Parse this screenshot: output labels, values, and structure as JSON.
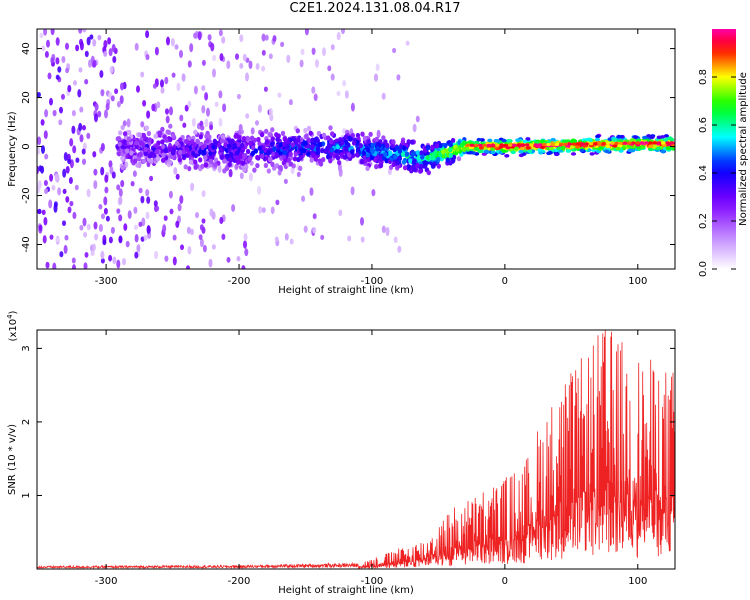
{
  "title": "C2E1.2024.131.08.04.R17",
  "chart_data": [
    {
      "type": "heatmap",
      "xlabel": "Height of straight line (km)",
      "ylabel": "Frequency (Hz)",
      "xlim": [
        -352,
        128
      ],
      "ylim": [
        -50,
        48
      ],
      "x_ticks": [
        -300,
        -200,
        -100,
        0,
        100
      ],
      "x_tick_labels": [
        "-300",
        "-200",
        "-100",
        "0",
        "100"
      ],
      "y_ticks": [
        -40,
        -20,
        0,
        20,
        40
      ],
      "y_tick_labels": [
        "-40",
        "-20",
        "0",
        "20",
        "40"
      ],
      "colorbar": {
        "label": "Normalized spectral amplitude",
        "range": [
          0,
          1
        ],
        "ticks": [
          0.0,
          0.2,
          0.4,
          0.6,
          0.8
        ],
        "tick_labels": [
          "0.0",
          "0.2",
          "0.4",
          "0.6",
          "0.8"
        ],
        "colormap": [
          "#ffffff",
          "#7a00ff",
          "#0000ff",
          "#00ffff",
          "#00ff00",
          "#ffff00",
          "#ff0000",
          "#ff00ff"
        ]
      },
      "band_profile": [
        {
          "x": -300,
          "center": 0,
          "halfwidth": 8,
          "level": 0.25
        },
        {
          "x": -200,
          "center": -2,
          "halfwidth": 8,
          "level": 0.35
        },
        {
          "x": -120,
          "center": 0,
          "halfwidth": 6,
          "level": 0.45
        },
        {
          "x": -60,
          "center": -5,
          "halfwidth": 6,
          "level": 0.55
        },
        {
          "x": -30,
          "center": 0,
          "halfwidth": 3,
          "level": 0.9
        },
        {
          "x": 0,
          "center": 0,
          "halfwidth": 3,
          "level": 0.95
        },
        {
          "x": 100,
          "center": 1,
          "halfwidth": 3,
          "level": 0.95
        }
      ]
    },
    {
      "type": "line",
      "xlabel": "Height of straight line (km)",
      "ylabel": "SNR (10 * v/v)",
      "y_multiplier_label": "(x10",
      "y_multiplier_exp": "4",
      "y_multiplier_close": ")",
      "xlim": [
        -352,
        128
      ],
      "ylim": [
        0,
        3.25
      ],
      "x_ticks": [
        -300,
        -200,
        -100,
        0,
        100
      ],
      "x_tick_labels": [
        "-300",
        "-200",
        "-100",
        "0",
        "100"
      ],
      "y_ticks": [
        1,
        2,
        3
      ],
      "y_tick_labels": [
        "1",
        "2",
        "3"
      ],
      "color": "#ee2222",
      "envelope": [
        {
          "x": -352,
          "y": 0.04
        },
        {
          "x": -200,
          "y": 0.05
        },
        {
          "x": -110,
          "y": 0.08
        },
        {
          "x": -90,
          "y": 0.2
        },
        {
          "x": -60,
          "y": 0.4
        },
        {
          "x": -40,
          "y": 0.8
        },
        {
          "x": -20,
          "y": 1.0
        },
        {
          "x": 0,
          "y": 1.2
        },
        {
          "x": 15,
          "y": 1.4
        },
        {
          "x": 30,
          "y": 2.1
        },
        {
          "x": 60,
          "y": 2.8
        },
        {
          "x": 75,
          "y": 3.2
        },
        {
          "x": 100,
          "y": 2.8
        },
        {
          "x": 128,
          "y": 2.6
        }
      ]
    }
  ]
}
